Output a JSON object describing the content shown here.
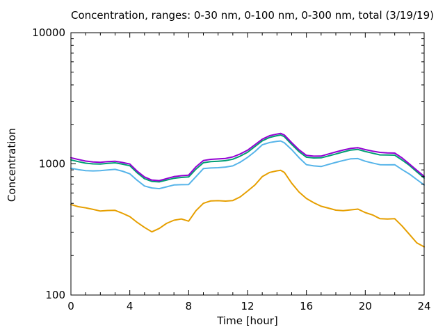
{
  "figure": {
    "background_color": "#ffffff",
    "axis_color": "#000000",
    "text_color": "#000000"
  },
  "chart_data": {
    "type": "line",
    "title": "Concentration, ranges: 0-30 nm, 0-100 nm, 0-300 nm, total (3/19/19)",
    "xlabel": "Time [hour]",
    "ylabel": "Concentration",
    "xlim": [
      0,
      24
    ],
    "ylim": [
      100,
      10000
    ],
    "yscale": "log",
    "grid": false,
    "legend": "none",
    "xticks": {
      "major": [
        0,
        4,
        8,
        12,
        16,
        20,
        24
      ],
      "labels": [
        "0",
        "4",
        "8",
        "12",
        "16",
        "20",
        "24"
      ],
      "minor_step": 1
    },
    "yticks": {
      "major": [
        100,
        1000,
        10000
      ],
      "labels": [
        "100",
        "1000",
        "10000"
      ],
      "minor": "log multiples 2-9 per decade"
    },
    "x": [
      0,
      0.5,
      1,
      1.5,
      2,
      2.5,
      3,
      3.5,
      4,
      4.5,
      5,
      5.5,
      6,
      6.5,
      7,
      7.5,
      8,
      8.5,
      9,
      9.5,
      10,
      10.5,
      11,
      11.5,
      12,
      12.5,
      13,
      13.5,
      14,
      14.25,
      14.5,
      15,
      15.5,
      16,
      16.5,
      17,
      17.5,
      18,
      18.5,
      19,
      19.5,
      20,
      20.5,
      21,
      21.5,
      22,
      22.5,
      23,
      23.5,
      24
    ],
    "series": [
      {
        "name": "0-30 nm",
        "color": "#e69f00",
        "values": [
          490,
          472,
          462,
          450,
          437,
          441,
          442,
          420,
          396,
          358,
          328,
          303,
          322,
          352,
          372,
          380,
          366,
          440,
          500,
          522,
          524,
          520,
          525,
          560,
          620,
          690,
          800,
          860,
          885,
          893,
          862,
          712,
          610,
          545,
          505,
          475,
          460,
          444,
          440,
          446,
          452,
          425,
          408,
          382,
          380,
          382,
          336,
          290,
          250,
          233
        ]
      },
      {
        "name": "0-100 nm",
        "color": "#56b4e9",
        "values": [
          926,
          905,
          888,
          884,
          888,
          898,
          908,
          880,
          840,
          750,
          678,
          655,
          647,
          668,
          691,
          694,
          696,
          800,
          920,
          930,
          935,
          945,
          965,
          1030,
          1120,
          1240,
          1398,
          1455,
          1485,
          1495,
          1450,
          1284,
          1115,
          985,
          965,
          955,
          990,
          1026,
          1060,
          1092,
          1097,
          1048,
          1015,
          985,
          983,
          985,
          905,
          837,
          760,
          691
        ]
      },
      {
        "name": "0-300 nm",
        "color": "#009e73",
        "values": [
          1072,
          1040,
          1012,
          1000,
          997,
          1008,
          1018,
          995,
          968,
          855,
          771,
          735,
          729,
          752,
          777,
          788,
          795,
          912,
          1020,
          1040,
          1048,
          1058,
          1085,
          1145,
          1225,
          1355,
          1499,
          1590,
          1640,
          1660,
          1612,
          1407,
          1240,
          1125,
          1110,
          1112,
          1150,
          1190,
          1232,
          1273,
          1288,
          1243,
          1205,
          1171,
          1168,
          1165,
          1070,
          975,
          870,
          780
        ]
      },
      {
        "name": "total",
        "color": "#9400d3",
        "values": [
          1114,
          1080,
          1050,
          1035,
          1027,
          1040,
          1048,
          1025,
          997,
          880,
          795,
          752,
          745,
          772,
          800,
          812,
          820,
          950,
          1060,
          1083,
          1090,
          1100,
          1130,
          1190,
          1270,
          1400,
          1543,
          1640,
          1687,
          1707,
          1660,
          1452,
          1280,
          1160,
          1145,
          1147,
          1190,
          1233,
          1275,
          1311,
          1327,
          1284,
          1250,
          1223,
          1212,
          1208,
          1110,
          997,
          895,
          804
        ]
      }
    ]
  }
}
